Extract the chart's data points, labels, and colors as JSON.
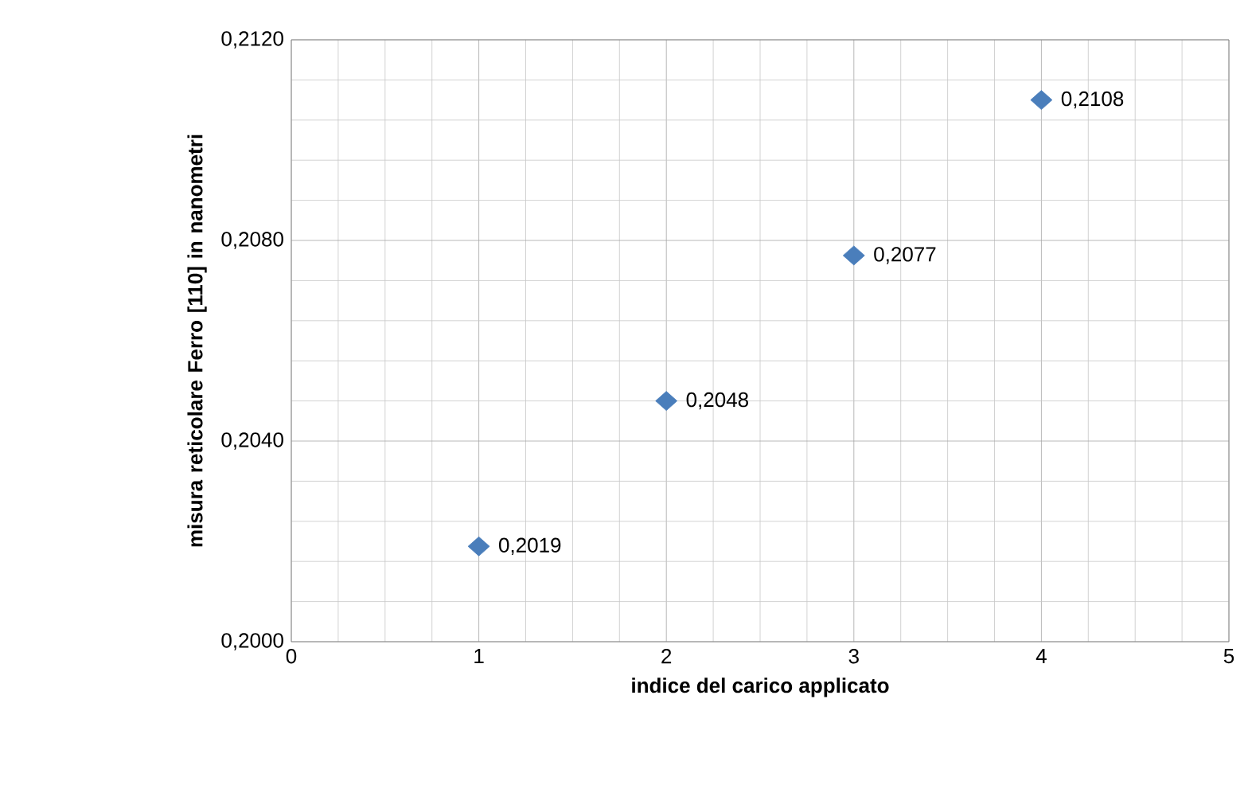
{
  "chart_data": {
    "type": "scatter",
    "xlabel": "indice del carico applicato",
    "ylabel": "misura reticolare Ferro [110] in nanometri",
    "x": [
      1,
      2,
      3,
      4
    ],
    "series": [
      {
        "color": "#4a7ebb",
        "values": [
          0.2019,
          0.2048,
          0.2077,
          0.2108
        ],
        "value_labels": [
          "0,2019",
          "0,2048",
          "0,2077",
          "0,2108"
        ]
      }
    ],
    "xlim": [
      0,
      5
    ],
    "xticks": [
      0,
      1,
      2,
      3,
      4,
      5
    ],
    "ylim": [
      0.2,
      0.212
    ],
    "yticks": [
      {
        "value": 0.2,
        "label": "0,2000"
      },
      {
        "value": 0.204,
        "label": "0,2040"
      },
      {
        "value": 0.208,
        "label": "0,2080"
      },
      {
        "value": 0.212,
        "label": "0,2120"
      }
    ],
    "grid": true,
    "marker": "diamond"
  }
}
